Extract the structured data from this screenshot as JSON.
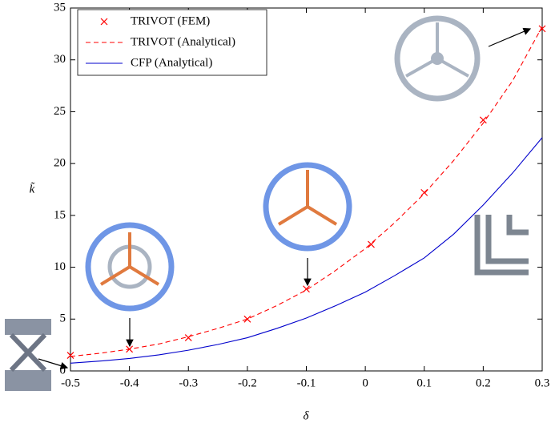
{
  "chart_data": {
    "type": "line",
    "x_label": "δ",
    "y_label": "k̃",
    "xlim": [
      -0.5,
      0.3
    ],
    "ylim": [
      0,
      35
    ],
    "xticks": [
      -0.5,
      -0.4,
      -0.3,
      -0.2,
      -0.1,
      0,
      0.1,
      0.2,
      0.3
    ],
    "yticks": [
      0,
      5,
      10,
      15,
      20,
      25,
      30,
      35
    ],
    "legend": "upper left",
    "series": [
      {
        "name": "TRIVOT (FEM)",
        "color": "#ff0000",
        "style": "marker",
        "x": [
          -0.5,
          -0.4,
          -0.3,
          -0.2,
          -0.1,
          0.01,
          0.1,
          0.2,
          0.3
        ],
        "values": [
          1.5,
          2.1,
          3.2,
          5.0,
          7.9,
          12.2,
          17.2,
          24.2,
          33.0
        ]
      },
      {
        "name": "TRIVOT (Analytical)",
        "color": "#ff0000",
        "style": "dashed",
        "x": [
          -0.5,
          -0.45,
          -0.4,
          -0.35,
          -0.3,
          -0.25,
          -0.2,
          -0.15,
          -0.1,
          -0.05,
          0,
          0.05,
          0.1,
          0.15,
          0.2,
          0.25,
          0.3
        ],
        "values": [
          1.4,
          1.7,
          2.1,
          2.6,
          3.3,
          4.1,
          5.0,
          6.3,
          7.8,
          9.7,
          11.8,
          14.3,
          17.1,
          20.3,
          23.9,
          28.0,
          33.2
        ]
      },
      {
        "name": "CFP (Analytical)",
        "color": "#0000cc",
        "style": "solid",
        "x": [
          -0.5,
          -0.45,
          -0.4,
          -0.35,
          -0.3,
          -0.25,
          -0.2,
          -0.15,
          -0.1,
          -0.05,
          0,
          0.05,
          0.1,
          0.15,
          0.2,
          0.25,
          0.3
        ],
        "values": [
          0.75,
          0.95,
          1.2,
          1.55,
          2.0,
          2.55,
          3.2,
          4.1,
          5.1,
          6.3,
          7.6,
          9.2,
          10.9,
          13.2,
          16.0,
          19.1,
          22.5
        ]
      }
    ]
  }
}
